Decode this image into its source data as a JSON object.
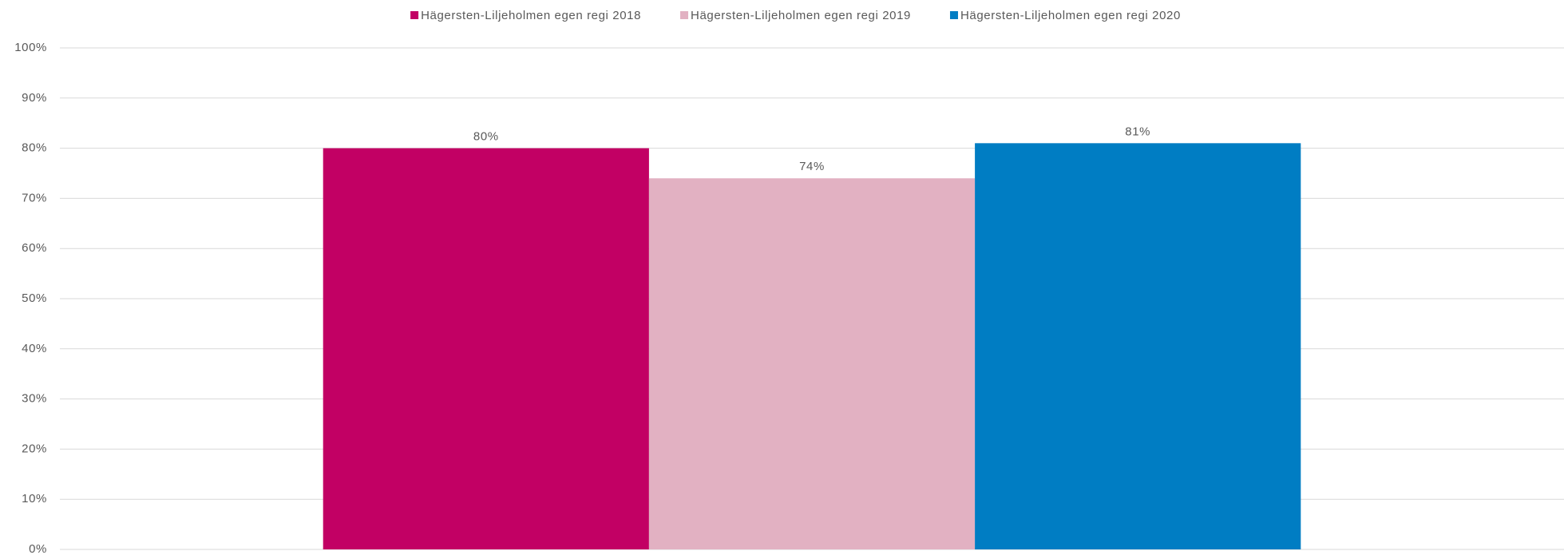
{
  "chart_data": {
    "type": "bar",
    "categories": [
      null
    ],
    "series": [
      {
        "name": "Hägersten-Liljeholmen egen regi 2018",
        "color": "#c20064",
        "values": [
          80
        ],
        "value_labels": [
          "80%"
        ]
      },
      {
        "name": "Hägersten-Liljeholmen egen regi 2019",
        "color": "#e2b1c2",
        "values": [
          74
        ],
        "value_labels": [
          "74%"
        ]
      },
      {
        "name": "Hägersten-Liljeholmen egen regi 2020",
        "color": "#007dc3",
        "values": [
          81
        ],
        "value_labels": [
          "81%"
        ]
      }
    ],
    "ylim": [
      0,
      100
    ],
    "yticks": [
      {
        "value": 0,
        "label": "0%"
      },
      {
        "value": 10,
        "label": "10%"
      },
      {
        "value": 20,
        "label": "20%"
      },
      {
        "value": 30,
        "label": "30%"
      },
      {
        "value": 40,
        "label": "40%"
      },
      {
        "value": 50,
        "label": "50%"
      },
      {
        "value": 60,
        "label": "60%"
      },
      {
        "value": 70,
        "label": "70%"
      },
      {
        "value": 80,
        "label": "80%"
      },
      {
        "value": 90,
        "label": "90%"
      },
      {
        "value": 100,
        "label": "100%"
      }
    ],
    "grid": true,
    "legend": "top"
  }
}
